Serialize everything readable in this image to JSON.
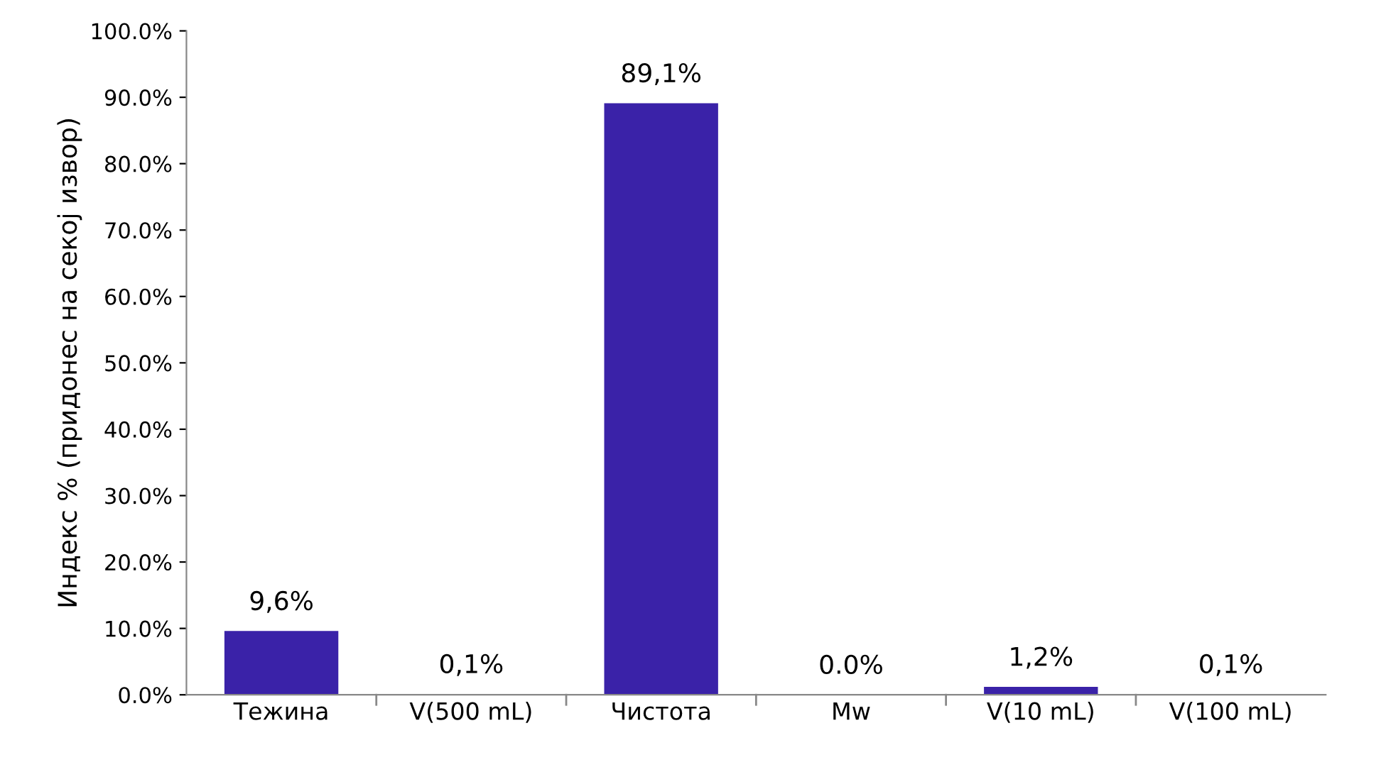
{
  "chart_data": {
    "type": "bar",
    "ylabel": "Индекс % (придонес на секој извор)",
    "categories": [
      "Тежина",
      "V(500 mL)",
      "Чистота",
      "Mw",
      "V(10 mL)",
      "V(100 mL)"
    ],
    "values": [
      9.6,
      0.1,
      89.1,
      0.0,
      1.2,
      0.1
    ],
    "value_labels": [
      "9,6%",
      "0,1%",
      "89,1%",
      "0.0%",
      "1,2%",
      "0,1%"
    ],
    "color": "#3a22a8",
    "ylim": [
      0,
      100
    ],
    "yticks": [
      {
        "value": 0,
        "label": "0.0%"
      },
      {
        "value": 10,
        "label": "10.0%"
      },
      {
        "value": 20,
        "label": "20.0%"
      },
      {
        "value": 30,
        "label": "30.0%"
      },
      {
        "value": 40,
        "label": "40.0%"
      },
      {
        "value": 50,
        "label": "50.0%"
      },
      {
        "value": 60,
        "label": "60.0%"
      },
      {
        "value": 70,
        "label": "70.0%"
      },
      {
        "value": 80,
        "label": "80.0%"
      },
      {
        "value": 90,
        "label": "90.0%"
      },
      {
        "value": 100,
        "label": "100.0%"
      }
    ],
    "grid": false
  }
}
